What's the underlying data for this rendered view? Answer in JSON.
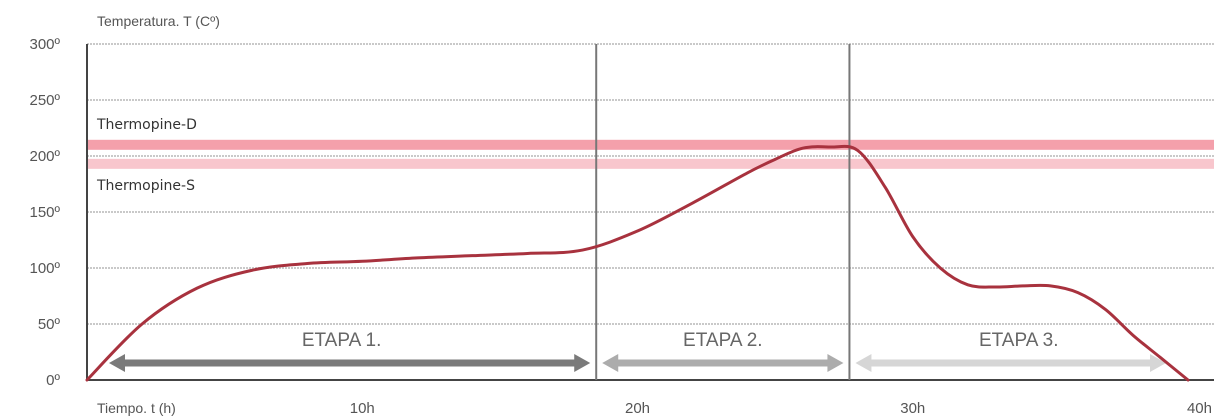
{
  "chart_data": {
    "type": "line",
    "ylabel": "Temperatura. T (Cº)",
    "xlabel": "Tiempo. t (h)",
    "xlim": [
      0,
      40
    ],
    "ylim": [
      0,
      300
    ],
    "y_ticks": [
      {
        "value": 0,
        "label": "0º"
      },
      {
        "value": 50,
        "label": "50º"
      },
      {
        "value": 100,
        "label": "100º"
      },
      {
        "value": 150,
        "label": "150º"
      },
      {
        "value": 200,
        "label": "200º"
      },
      {
        "value": 250,
        "label": "250º"
      },
      {
        "value": 300,
        "label": "300º"
      }
    ],
    "x_ticks": [
      {
        "value": 10,
        "label": "10h"
      },
      {
        "value": 20,
        "label": "20h"
      },
      {
        "value": 30,
        "label": "30h"
      },
      {
        "value": 40,
        "label": "40h"
      }
    ],
    "grid": true,
    "bands": [
      {
        "name": "Thermopine-D",
        "value": 210,
        "color": "#f4a0ab"
      },
      {
        "name": "Thermopine-S",
        "value": 193,
        "color": "#f8c6cd"
      }
    ],
    "stages": [
      {
        "label": "ETAPA 1.",
        "start": 0,
        "end": 18.5,
        "color": "#7a7a7a"
      },
      {
        "label": "ETAPA 2.",
        "start": 18.5,
        "end": 27.7,
        "color": "#acacac"
      },
      {
        "label": "ETAPA 3.",
        "start": 27.7,
        "end": 40,
        "color": "#d6d6d6"
      }
    ],
    "stage_dividers": [
      18.5,
      27.7
    ],
    "series": [
      {
        "color": "#a8323e",
        "x": [
          0,
          2,
          4,
          6,
          8,
          10,
          12,
          14,
          16,
          18,
          20,
          22,
          24,
          25,
          26,
          27,
          28,
          29,
          30,
          31,
          32,
          33,
          34,
          35,
          36,
          37,
          38,
          39,
          40
        ],
        "y": [
          0,
          50,
          82,
          98,
          104,
          106,
          109,
          111,
          113,
          116,
          133,
          158,
          185,
          197,
          207,
          208,
          205,
          172,
          128,
          100,
          85,
          83,
          84,
          84,
          78,
          63,
          40,
          20,
          0
        ]
      }
    ]
  }
}
